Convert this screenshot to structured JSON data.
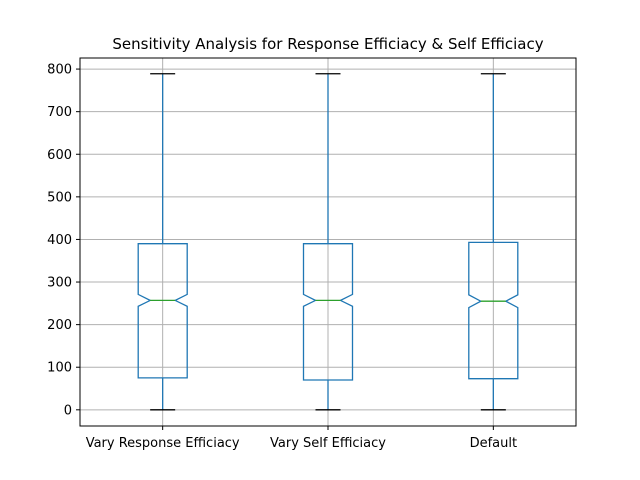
{
  "chart_data": {
    "type": "boxplot",
    "title": "Sensitivity Analysis for Response Efficiacy & Self Efficiacy",
    "xlabel": "",
    "ylabel": "",
    "ylim": [
      -38,
      826
    ],
    "yticks": [
      0,
      100,
      200,
      300,
      400,
      500,
      600,
      700,
      800
    ],
    "grid": true,
    "notch": true,
    "colors": {
      "box": "#1f77b4",
      "median": "#2ca02c",
      "cap": "#000000",
      "grid": "#b0b0b0"
    },
    "categories": [
      "Vary Response Efficiacy",
      "Vary Self Efficiacy",
      "Default"
    ],
    "boxes": [
      {
        "name": "Vary Response Efficiacy",
        "min": 0,
        "q1": 75,
        "median": 257,
        "q3": 390,
        "max": 789,
        "notch_low": 243,
        "notch_high": 271
      },
      {
        "name": "Vary Self Efficiacy",
        "min": 0,
        "q1": 70,
        "median": 257,
        "q3": 390,
        "max": 789,
        "notch_low": 243,
        "notch_high": 271
      },
      {
        "name": "Default",
        "min": 0,
        "q1": 73,
        "median": 255,
        "q3": 393,
        "max": 789,
        "notch_low": 240,
        "notch_high": 270
      }
    ]
  }
}
